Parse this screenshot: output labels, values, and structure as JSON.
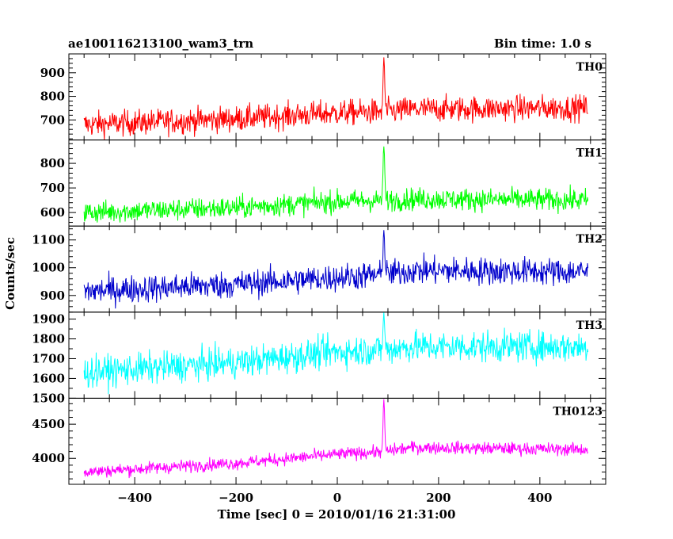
{
  "header": {
    "title": "ae100116213100_wam3_trn",
    "bin_time": "Bin time: 1.0 s"
  },
  "chart_data": {
    "type": "line",
    "xlabel": "Time [sec] 0 = 2010/01/16 21:31:00",
    "ylabel": "Counts/sec",
    "xlim": [
      -530,
      530
    ],
    "x_ticks": [
      -400,
      -200,
      0,
      200,
      400
    ],
    "x_range": [
      -500,
      495
    ],
    "peak_time": 92,
    "panels": [
      {
        "name": "TH0",
        "color": "#ff0000",
        "ylim": [
          615,
          980
        ],
        "yticks": [
          700,
          800,
          900
        ],
        "trend": [
          [
            -500,
            680
          ],
          [
            -200,
            705
          ],
          [
            0,
            730
          ],
          [
            90,
            735
          ],
          [
            150,
            745
          ],
          [
            495,
            752
          ]
        ],
        "noise": 38,
        "peak_height": 965
      },
      {
        "name": "TH1",
        "color": "#00ff00",
        "ylim": [
          545,
          895
        ],
        "yticks": [
          600,
          700,
          800
        ],
        "trend": [
          [
            -500,
            600
          ],
          [
            -200,
            620
          ],
          [
            0,
            645
          ],
          [
            90,
            650
          ],
          [
            150,
            655
          ],
          [
            495,
            650
          ]
        ],
        "noise": 32,
        "peak_height": 880
      },
      {
        "name": "TH2",
        "color": "#0000cc",
        "ylim": [
          840,
          1150
        ],
        "yticks": [
          900,
          1000,
          1100
        ],
        "trend": [
          [
            -500,
            915
          ],
          [
            -200,
            940
          ],
          [
            0,
            965
          ],
          [
            90,
            975
          ],
          [
            150,
            990
          ],
          [
            495,
            985
          ]
        ],
        "noise": 35,
        "peak_height": 1140
      },
      {
        "name": "TH3",
        "color": "#00ffff",
        "ylim": [
          1500,
          1935
        ],
        "yticks": [
          1500,
          1600,
          1700,
          1800,
          1900
        ],
        "trend": [
          [
            -500,
            1630
          ],
          [
            -200,
            1680
          ],
          [
            0,
            1735
          ],
          [
            90,
            1745
          ],
          [
            150,
            1760
          ],
          [
            495,
            1760
          ]
        ],
        "noise": 55,
        "peak_height": 1930
      },
      {
        "name": "TH0123",
        "color": "#ff00ff",
        "ylim": [
          3620,
          4880
        ],
        "yticks": [
          4000,
          4500
        ],
        "trend": [
          [
            -500,
            3800
          ],
          [
            -200,
            3930
          ],
          [
            0,
            4060
          ],
          [
            90,
            4100
          ],
          [
            150,
            4160
          ],
          [
            495,
            4130
          ]
        ],
        "noise": 65,
        "peak_height": 4850
      }
    ]
  }
}
